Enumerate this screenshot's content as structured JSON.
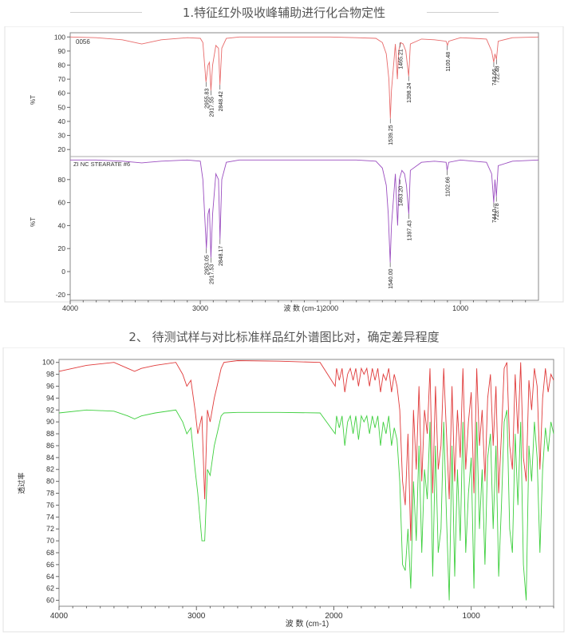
{
  "section1": {
    "title": "1.特征红外吸收峰辅助进行化合物定性"
  },
  "section2": {
    "title": "2、 待测试样与对比标准样品红外谱图比对，确定差异程度"
  },
  "chart_data": [
    {
      "type": "line",
      "title": "",
      "sample_label": "0056",
      "reference_label": "ZI NC STEARATE #6",
      "ylabel": "%T",
      "xlabel": "波 数 (cm-1)",
      "xlim": [
        4000,
        400
      ],
      "x_ticks": [
        4000,
        3000,
        2000,
        1000
      ],
      "top_ylim": [
        15,
        103
      ],
      "top_y_ticks": [
        20,
        30,
        40,
        50,
        60,
        70,
        80,
        90,
        100
      ],
      "bottom_ylim": [
        -25,
        100
      ],
      "bottom_y_ticks": [
        -20,
        0,
        20,
        40,
        60,
        80
      ],
      "grid": false,
      "series": [
        {
          "color": "#e86b6b",
          "x": [
            4000,
            3800,
            3600,
            3500,
            3450,
            3400,
            3300,
            3100,
            3000,
            2980,
            2956,
            2940,
            2930,
            2918,
            2905,
            2880,
            2860,
            2849,
            2835,
            2800,
            2700,
            2400,
            2000,
            1800,
            1650,
            1600,
            1570,
            1550,
            1539,
            1530,
            1500,
            1485,
            1475,
            1460,
            1440,
            1420,
            1398,
            1385,
            1300,
            1200,
            1110,
            1100,
            1090,
            1000,
            900,
            800,
            760,
            744,
            735,
            723,
            710,
            600,
            400
          ],
          "y": [
            100,
            99.5,
            98,
            96,
            95,
            96,
            98,
            99.5,
            99,
            96,
            68,
            80,
            82,
            62,
            80,
            94,
            92,
            66,
            92,
            99,
            100,
            100,
            100,
            99.5,
            99,
            96,
            88,
            70,
            42,
            62,
            95,
            70,
            90,
            96,
            95,
            90,
            72,
            95,
            98.5,
            98,
            97,
            94,
            97,
            99.5,
            99,
            98.5,
            90,
            82,
            88,
            84,
            97,
            99.5,
            100
          ]
        },
        {
          "color": "#9b4ec0",
          "x": [
            4000,
            3800,
            3600,
            3500,
            3450,
            3400,
            3300,
            3100,
            3000,
            2980,
            2953,
            2940,
            2930,
            2918,
            2905,
            2880,
            2860,
            2848,
            2835,
            2800,
            2700,
            2400,
            2000,
            1800,
            1650,
            1600,
            1570,
            1555,
            1540,
            1530,
            1500,
            1483,
            1470,
            1450,
            1430,
            1415,
            1397,
            1385,
            1300,
            1200,
            1110,
            1102,
            1090,
            1000,
            900,
            800,
            760,
            744,
            735,
            724,
            710,
            600,
            400
          ],
          "y": [
            97,
            97,
            96,
            95,
            94.5,
            95,
            96,
            97,
            96,
            80,
            20,
            50,
            55,
            12,
            50,
            85,
            80,
            28,
            80,
            95,
            97,
            97,
            97,
            97,
            96,
            90,
            75,
            50,
            8,
            40,
            85,
            40,
            80,
            88,
            85,
            75,
            50,
            88,
            95,
            96,
            95,
            88,
            95,
            97,
            96,
            95,
            85,
            60,
            80,
            65,
            92,
            96,
            97
          ]
        }
      ],
      "peak_labels_top": [
        "2955.83",
        "2917.55",
        "2848.42",
        "1539.25",
        "1465.21",
        "1398.24",
        "1100.48",
        "743.66",
        "722.48"
      ],
      "peak_labels_bottom": [
        "2953.05",
        "2917.53",
        "2848.17",
        "1540.00",
        "1463.20",
        "1397.43",
        "1102.66",
        "744.0",
        "723.78"
      ]
    },
    {
      "type": "line",
      "title": "",
      "ylabel": "透过率",
      "xlabel": "波 数 (cm-1)",
      "xlim": [
        4000,
        400
      ],
      "x_ticks": [
        4000,
        3000,
        2000,
        1000
      ],
      "ylim": [
        59,
        100.5
      ],
      "y_ticks": [
        60,
        62,
        64,
        66,
        68,
        70,
        72,
        74,
        76,
        78,
        80,
        82,
        84,
        86,
        88,
        90,
        92,
        94,
        96,
        98,
        100
      ],
      "grid": false,
      "series": [
        {
          "color": "#e03a3a",
          "x": [
            4000,
            3800,
            3600,
            3500,
            3450,
            3400,
            3300,
            3150,
            3100,
            3070,
            3040,
            3010,
            2990,
            2960,
            2940,
            2920,
            2900,
            2870,
            2850,
            2820,
            2800,
            2700,
            2400,
            2100,
            1990,
            1980,
            1960,
            1940,
            1920,
            1900,
            1880,
            1860,
            1840,
            1820,
            1800,
            1780,
            1760,
            1740,
            1720,
            1700,
            1680,
            1660,
            1640,
            1620,
            1600,
            1580,
            1560,
            1540,
            1520,
            1500,
            1480,
            1460,
            1440,
            1420,
            1400,
            1380,
            1360,
            1340,
            1320,
            1300,
            1280,
            1260,
            1240,
            1220,
            1200,
            1180,
            1160,
            1140,
            1120,
            1100,
            1080,
            1060,
            1040,
            1020,
            1000,
            980,
            960,
            940,
            920,
            900,
            880,
            860,
            840,
            820,
            800,
            780,
            760,
            740,
            720,
            700,
            680,
            660,
            640,
            620,
            600,
            580,
            560,
            540,
            520,
            500,
            480,
            460,
            440,
            420,
            400
          ],
          "y": [
            98.5,
            99.5,
            100,
            99,
            98.5,
            99,
            99.5,
            100,
            98,
            96,
            97,
            92,
            88,
            91,
            77,
            92,
            90,
            94,
            96,
            99,
            100,
            100.3,
            100.2,
            100,
            96,
            99,
            97,
            99,
            95,
            98,
            99,
            97,
            99,
            96,
            99,
            98,
            99,
            96,
            99,
            97,
            99,
            95,
            98,
            97,
            99,
            95,
            98,
            96,
            92,
            80,
            76,
            88,
            70,
            92,
            82,
            96,
            80,
            92,
            88,
            99,
            78,
            96,
            82,
            86,
            99,
            88,
            77,
            96,
            80,
            92,
            84,
            99,
            82,
            90,
            95,
            78,
            99,
            86,
            92,
            80,
            94,
            98,
            86,
            96,
            78,
            88,
            99,
            100,
            86,
            82,
            98,
            88,
            100,
            84,
            80,
            97,
            92,
            99,
            96,
            82,
            94,
            99,
            95,
            98,
            97
          ]
        },
        {
          "color": "#3ecf3e",
          "x": [
            4000,
            3800,
            3600,
            3500,
            3450,
            3400,
            3300,
            3150,
            3100,
            3070,
            3040,
            3010,
            2990,
            2960,
            2940,
            2920,
            2900,
            2870,
            2850,
            2820,
            2800,
            2700,
            2400,
            2100,
            1990,
            1980,
            1960,
            1940,
            1920,
            1900,
            1880,
            1860,
            1840,
            1820,
            1800,
            1780,
            1760,
            1740,
            1720,
            1700,
            1680,
            1660,
            1640,
            1620,
            1600,
            1580,
            1560,
            1540,
            1520,
            1500,
            1480,
            1460,
            1440,
            1420,
            1400,
            1380,
            1360,
            1340,
            1320,
            1300,
            1280,
            1260,
            1240,
            1220,
            1200,
            1180,
            1160,
            1140,
            1120,
            1100,
            1080,
            1060,
            1040,
            1020,
            1000,
            980,
            960,
            940,
            920,
            900,
            880,
            860,
            840,
            820,
            800,
            780,
            760,
            740,
            720,
            700,
            680,
            660,
            640,
            620,
            600,
            580,
            560,
            540,
            520,
            500,
            480,
            460,
            440,
            420,
            400
          ],
          "y": [
            91.5,
            92,
            91.8,
            91,
            90.5,
            91,
            91.5,
            92,
            90,
            88,
            89,
            82,
            78,
            70,
            70,
            82,
            81,
            86,
            88,
            91,
            91.5,
            91.6,
            91.6,
            91.5,
            88,
            91,
            89,
            91,
            86,
            90,
            91,
            88,
            91,
            87,
            91,
            90,
            91,
            88,
            91,
            89,
            91,
            86,
            90,
            88,
            91,
            86,
            89,
            87,
            80,
            66,
            65,
            72,
            62,
            80,
            70,
            86,
            68,
            82,
            77,
            90,
            64,
            86,
            68,
            72,
            90,
            74,
            60,
            86,
            64,
            82,
            70,
            90,
            68,
            78,
            84,
            62,
            90,
            72,
            82,
            66,
            84,
            88,
            72,
            86,
            64,
            76,
            90,
            92,
            72,
            68,
            88,
            76,
            90,
            66,
            60,
            86,
            80,
            90,
            84,
            68,
            82,
            89,
            85,
            90,
            88
          ]
        }
      ]
    }
  ]
}
